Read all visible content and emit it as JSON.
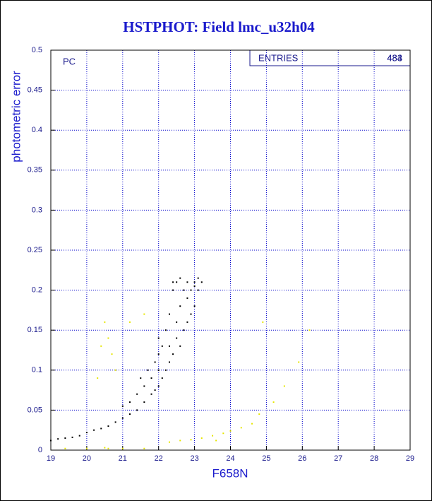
{
  "chart_data": {
    "type": "scatter",
    "title": "HSTPHOT: Field lmc_u32h04",
    "panel_label": "PC",
    "stats": {
      "label": "ENTRIES",
      "values": [
        "483",
        "484"
      ]
    },
    "x_label": "F658N",
    "y_label": "photometric error",
    "xlim": [
      19,
      29
    ],
    "ylim": [
      0,
      0.5
    ],
    "xticks": [
      19,
      20,
      21,
      22,
      23,
      24,
      25,
      26,
      27,
      28,
      29
    ],
    "yticks": [
      0,
      0.05,
      0.1,
      0.15,
      0.2,
      0.25,
      0.3,
      0.35,
      0.4,
      0.45,
      0.5
    ],
    "grid": true,
    "series": [
      {
        "color": "#000000",
        "x": [
          19.0,
          19.2,
          19.4,
          19.6,
          19.8,
          20.0,
          20.2,
          20.4,
          20.6,
          20.8,
          21.0,
          21.0,
          21.2,
          21.2,
          21.4,
          21.4,
          21.5,
          21.6,
          21.6,
          21.7,
          21.8,
          21.8,
          21.9,
          22.0,
          22.0,
          22.0,
          22.1,
          22.1,
          22.2,
          22.2,
          22.3,
          22.3,
          22.3,
          22.4,
          22.4,
          22.5,
          22.5,
          22.5,
          22.6,
          22.6,
          22.7,
          22.7,
          22.8,
          22.8,
          22.8,
          22.9,
          22.9,
          23.0,
          23.0,
          23.0,
          23.1,
          23.1,
          23.2,
          22.4,
          22.6,
          21.9,
          22.0
        ],
        "values": [
          0.012,
          0.014,
          0.015,
          0.016,
          0.018,
          0.022,
          0.025,
          0.027,
          0.03,
          0.035,
          0.04,
          0.055,
          0.045,
          0.06,
          0.05,
          0.07,
          0.09,
          0.06,
          0.08,
          0.1,
          0.07,
          0.09,
          0.11,
          0.08,
          0.1,
          0.12,
          0.09,
          0.13,
          0.1,
          0.15,
          0.11,
          0.13,
          0.17,
          0.12,
          0.2,
          0.14,
          0.16,
          0.21,
          0.13,
          0.18,
          0.15,
          0.2,
          0.16,
          0.19,
          0.21,
          0.17,
          0.2,
          0.18,
          0.21,
          0.205,
          0.2,
          0.215,
          0.21,
          0.21,
          0.215,
          0.075,
          0.14
        ]
      },
      {
        "color": "#e6e600",
        "x": [
          19.4,
          20.0,
          20.5,
          20.6,
          21.0,
          21.6,
          20.3,
          20.4,
          20.6,
          20.7,
          20.5,
          20.8,
          21.2,
          21.6,
          22.3,
          22.6,
          22.9,
          23.2,
          23.5,
          23.8,
          24.0,
          24.3,
          24.6,
          24.8,
          25.2,
          25.5,
          25.9,
          26.2,
          24.9,
          23.6
        ],
        "values": [
          0.002,
          0.002,
          0.003,
          0.002,
          0.002,
          0.002,
          0.09,
          0.13,
          0.14,
          0.12,
          0.16,
          0.1,
          0.16,
          0.17,
          0.01,
          0.012,
          0.013,
          0.015,
          0.018,
          0.021,
          0.024,
          0.028,
          0.033,
          0.045,
          0.06,
          0.08,
          0.11,
          0.15,
          0.16,
          0.012
        ]
      }
    ]
  }
}
